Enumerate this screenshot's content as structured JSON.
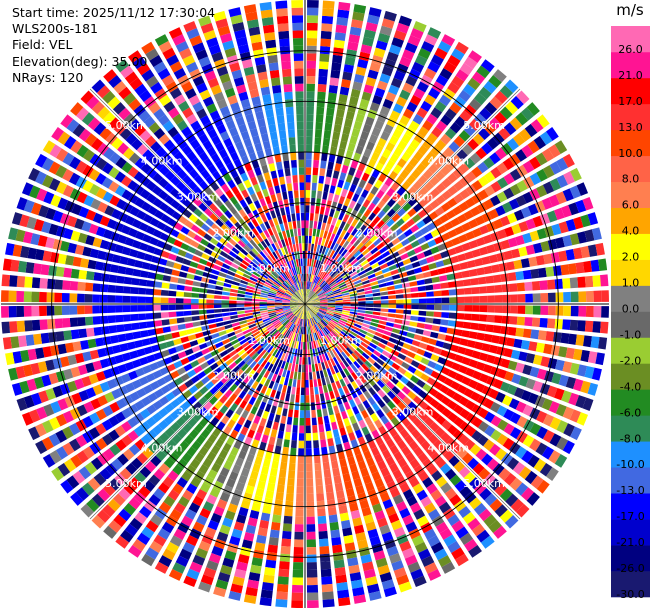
{
  "header": {
    "start_time": "Start time: 2025/11/12 17:30:04",
    "instrument": "WLS200s-181",
    "field": "Field: VEL",
    "elevation": "Elevation(deg): 35.00",
    "nrays": "NRays: 120"
  },
  "chart_data": {
    "type": "ppi-polar",
    "field": "VEL",
    "units": "m/s",
    "n_rays": 120,
    "max_range_km": 6.0,
    "range_rings_km": [
      1.0,
      2.0,
      3.0,
      4.0,
      5.0
    ],
    "range_ring_labels": [
      "1.00km",
      "2.00km",
      "3.00km",
      "4.00km",
      "5.00km"
    ],
    "grid": true,
    "colorbar": {
      "title": "m/s",
      "levels": [
        -30.0,
        -26.0,
        -21.0,
        -17.0,
        -13.0,
        -10.0,
        -8.0,
        -6.0,
        -4.0,
        -2.0,
        -1.0,
        0.0,
        1.0,
        2.0,
        4.0,
        6.0,
        8.0,
        10.0,
        13.0,
        17.0,
        21.0,
        26.0
      ],
      "tick_labels": [
        "-30.0",
        "-26.0",
        "-21.0",
        "-17.0",
        "-13.0",
        "-10.0",
        "-8.0",
        "-6.0",
        "-4.0",
        "-2.0",
        "-1.0",
        "0.0",
        "1.0",
        "2.0",
        "4.0",
        "6.0",
        "8.0",
        "10.0",
        "13.0",
        "17.0",
        "21.0",
        "26.0"
      ],
      "colors": [
        "#191970",
        "#000080",
        "#0000cd",
        "#0000ff",
        "#4169e1",
        "#1e90ff",
        "#2e8b57",
        "#228b22",
        "#6b8e23",
        "#9acd32",
        "#696969",
        "#808080",
        "#ffd700",
        "#ffff00",
        "#ffa500",
        "#ff7f50",
        "#ff6347",
        "#ff4500",
        "#ff3030",
        "#ff0000",
        "#ff1493",
        "#ff69b4"
      ]
    },
    "wind_pattern": {
      "description_free": true,
      "toward_direction_deg": 112,
      "peak_speed_ms": 18,
      "coherent_range_km": [
        3.0,
        4.2
      ]
    }
  }
}
